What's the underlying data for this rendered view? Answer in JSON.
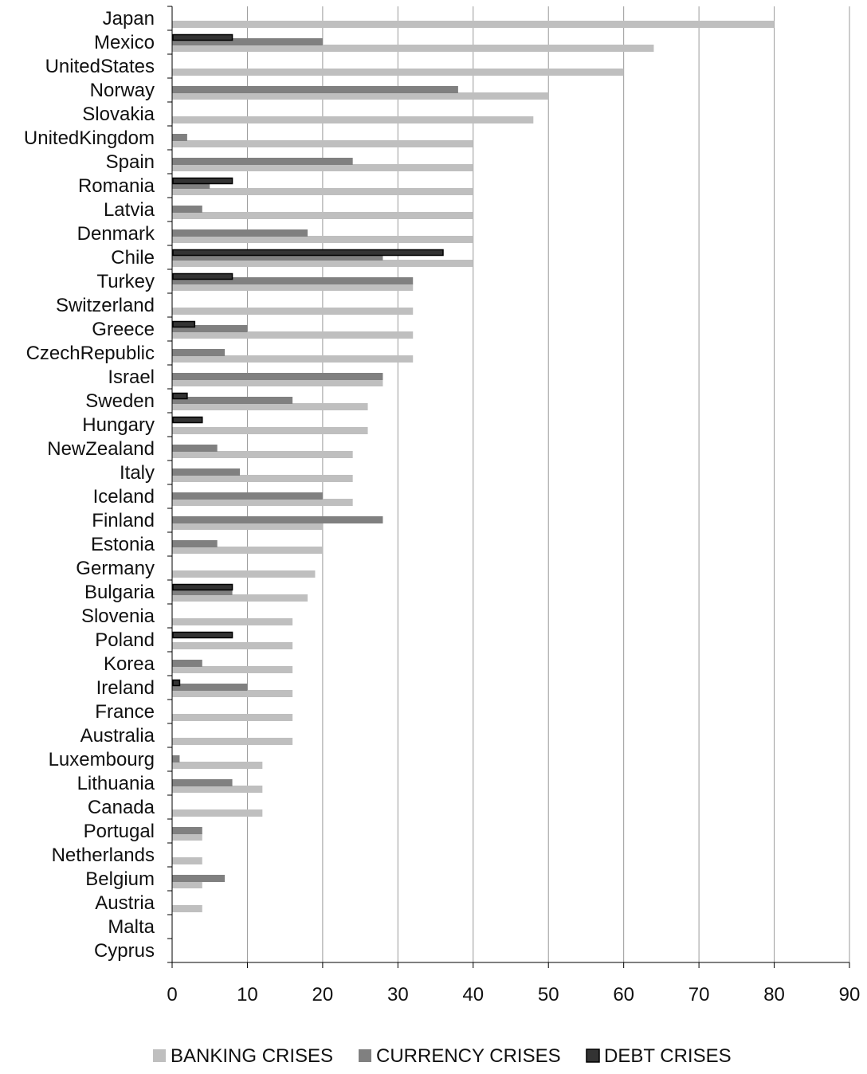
{
  "chart_data": {
    "type": "bar",
    "orientation": "horizontal",
    "categories": [
      "Japan",
      "Mexico",
      "UnitedStates",
      "Norway",
      "Slovakia",
      "UnitedKingdom",
      "Spain",
      "Romania",
      "Latvia",
      "Denmark",
      "Chile",
      "Turkey",
      "Switzerland",
      "Greece",
      "CzechRepublic",
      "Israel",
      "Sweden",
      "Hungary",
      "NewZealand",
      "Italy",
      "Iceland",
      "Finland",
      "Estonia",
      "Germany",
      "Bulgaria",
      "Slovenia",
      "Poland",
      "Korea",
      "Ireland",
      "France",
      "Australia",
      "Luxembourg",
      "Lithuania",
      "Canada",
      "Portugal",
      "Netherlands",
      "Belgium",
      "Austria",
      "Malta",
      "Cyprus"
    ],
    "series": [
      {
        "name": "BANKING CRISES",
        "color": "#bfbfbf",
        "values": [
          80,
          64,
          60,
          50,
          48,
          40,
          40,
          40,
          40,
          40,
          40,
          32,
          32,
          32,
          32,
          28,
          26,
          26,
          24,
          24,
          24,
          20,
          20,
          19,
          18,
          16,
          16,
          16,
          16,
          16,
          16,
          12,
          12,
          12,
          4,
          4,
          4,
          4,
          0,
          0
        ]
      },
      {
        "name": "CURRENCY CRISES",
        "color": "#808080",
        "values": [
          0,
          20,
          0,
          38,
          0,
          2,
          24,
          5,
          4,
          18,
          28,
          32,
          0,
          10,
          7,
          28,
          16,
          0,
          6,
          9,
          20,
          28,
          6,
          0,
          8,
          0,
          0,
          4,
          10,
          0,
          0,
          1,
          8,
          0,
          4,
          0,
          7,
          0,
          0,
          0
        ]
      },
      {
        "name": "DEBT CRISES",
        "color": "#333333",
        "values": [
          0,
          8,
          0,
          0,
          0,
          0,
          0,
          8,
          0,
          0,
          36,
          8,
          0,
          3,
          0,
          0,
          2,
          4,
          0,
          0,
          0,
          0,
          0,
          0,
          8,
          0,
          8,
          0,
          1,
          0,
          0,
          0,
          0,
          0,
          0,
          0,
          0,
          0,
          0,
          0
        ]
      }
    ],
    "xlim": [
      0,
      90
    ],
    "x_ticks": [
      "0",
      "10",
      "20",
      "30",
      "40",
      "50",
      "60",
      "70",
      "80",
      "90"
    ],
    "grid": "vertical",
    "legend": "bottom",
    "title": "",
    "xlabel": "",
    "ylabel": ""
  }
}
